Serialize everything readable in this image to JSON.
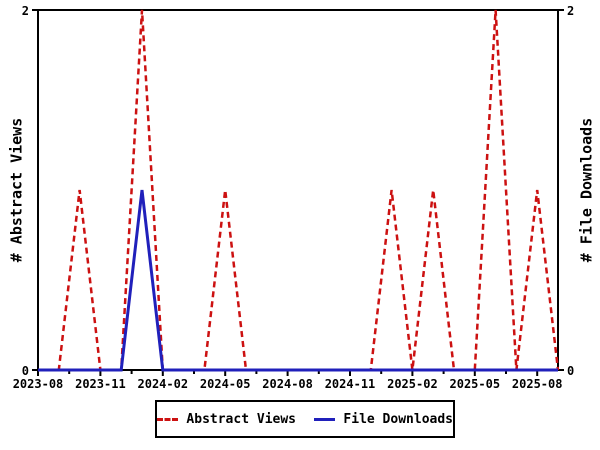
{
  "chart_data": {
    "type": "line",
    "title": "",
    "x": [
      "2023-08",
      "2023-09",
      "2023-10",
      "2023-11",
      "2023-12",
      "2024-01",
      "2024-02",
      "2024-03",
      "2024-04",
      "2024-05",
      "2024-06",
      "2024-07",
      "2024-08",
      "2024-09",
      "2024-10",
      "2024-11",
      "2024-12",
      "2025-01",
      "2025-02",
      "2025-03",
      "2025-04",
      "2025-05",
      "2025-06",
      "2025-07",
      "2025-08",
      "2025-09"
    ],
    "series": [
      {
        "name": "Abstract Views",
        "color": "#cc1111",
        "style": "dashed",
        "axis": "left",
        "values": [
          0,
          0,
          1,
          0,
          0,
          2,
          0,
          0,
          0,
          1,
          0,
          0,
          0,
          0,
          0,
          0,
          0,
          1,
          0,
          1,
          0,
          0,
          2,
          0,
          1,
          0
        ]
      },
      {
        "name": "File Downloads",
        "color": "#2020bb",
        "style": "solid",
        "axis": "right",
        "values": [
          0,
          0,
          0,
          0,
          0,
          1,
          0,
          0,
          0,
          0,
          0,
          0,
          0,
          0,
          0,
          0,
          0,
          0,
          0,
          0,
          0,
          0,
          0,
          0,
          0,
          0
        ]
      }
    ],
    "xticks": [
      "2023-08",
      "2023-11",
      "2024-02",
      "2024-05",
      "2024-08",
      "2024-11",
      "2025-02",
      "2025-05",
      "2025-08"
    ],
    "yticks": [
      0,
      2
    ],
    "ylim": [
      0,
      2
    ],
    "ylabel_left": "# Abstract Views",
    "ylabel_right": "# File Downloads",
    "legend": {
      "position": "bottom",
      "entries": [
        "Abstract Views",
        "File Downloads"
      ]
    },
    "grid": "off",
    "axis_color": "#000000",
    "background": "#ffffff"
  }
}
